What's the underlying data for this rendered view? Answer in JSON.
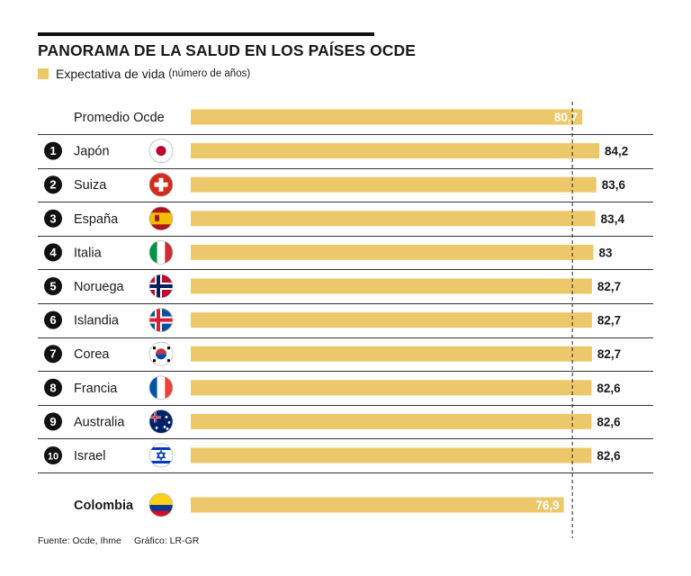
{
  "header": {
    "title": "PANORAMA DE LA SALUD EN LOS PAÍSES OCDE",
    "legend_label": "Expectativa de vida",
    "legend_unit": "(número de años)"
  },
  "footer": {
    "source": "Fuente: Ocde, Ihme",
    "credit": "Gráfico: LR-GR"
  },
  "colors": {
    "bar": "#ecc86a",
    "rule": "#333333",
    "text": "#1a1a1a",
    "value_inside": "#ffffff"
  },
  "chart_data": {
    "type": "bar",
    "orientation": "horizontal",
    "series": [
      {
        "values": [
          80.7,
          84.2,
          83.6,
          83.4,
          83,
          82.7,
          82.7,
          82.7,
          82.6,
          82.6,
          82.6,
          76.9
        ]
      }
    ],
    "rows": [
      {
        "rank": "",
        "name": "Promedio Ocde",
        "flag": "none",
        "value": 80.7,
        "label": "80,7"
      },
      {
        "rank": "1",
        "name": "Japón",
        "flag": "japan-flag-icon",
        "value": 84.2,
        "label": "84,2"
      },
      {
        "rank": "2",
        "name": "Suiza",
        "flag": "switzerland-flag-icon",
        "value": 83.6,
        "label": "83,6"
      },
      {
        "rank": "3",
        "name": "España",
        "flag": "spain-flag-icon",
        "value": 83.4,
        "label": "83,4"
      },
      {
        "rank": "4",
        "name": "Italia",
        "flag": "italy-flag-icon",
        "value": 83,
        "label": "83"
      },
      {
        "rank": "5",
        "name": "Noruega",
        "flag": "norway-flag-icon",
        "value": 82.7,
        "label": "82,7"
      },
      {
        "rank": "6",
        "name": "Islandia",
        "flag": "iceland-flag-icon",
        "value": 82.7,
        "label": "82,7"
      },
      {
        "rank": "7",
        "name": "Corea",
        "flag": "korea-flag-icon",
        "value": 82.7,
        "label": "82,7"
      },
      {
        "rank": "8",
        "name": "Francia",
        "flag": "france-flag-icon",
        "value": 82.6,
        "label": "82,6"
      },
      {
        "rank": "9",
        "name": "Australia",
        "flag": "australia-flag-icon",
        "value": 82.6,
        "label": "82,6"
      },
      {
        "rank": "10",
        "name": "Israel",
        "flag": "israel-flag-icon",
        "value": 82.6,
        "label": "82,6"
      },
      {
        "rank": "",
        "name": "Colombia",
        "flag": "colombia-flag-icon",
        "value": 76.9,
        "label": "76,9",
        "highlight": true
      }
    ],
    "reference_line": {
      "value": 80.7,
      "style": "dashed"
    },
    "xlim": [
      0,
      84.2
    ],
    "grid": false,
    "legend": "top-left"
  }
}
